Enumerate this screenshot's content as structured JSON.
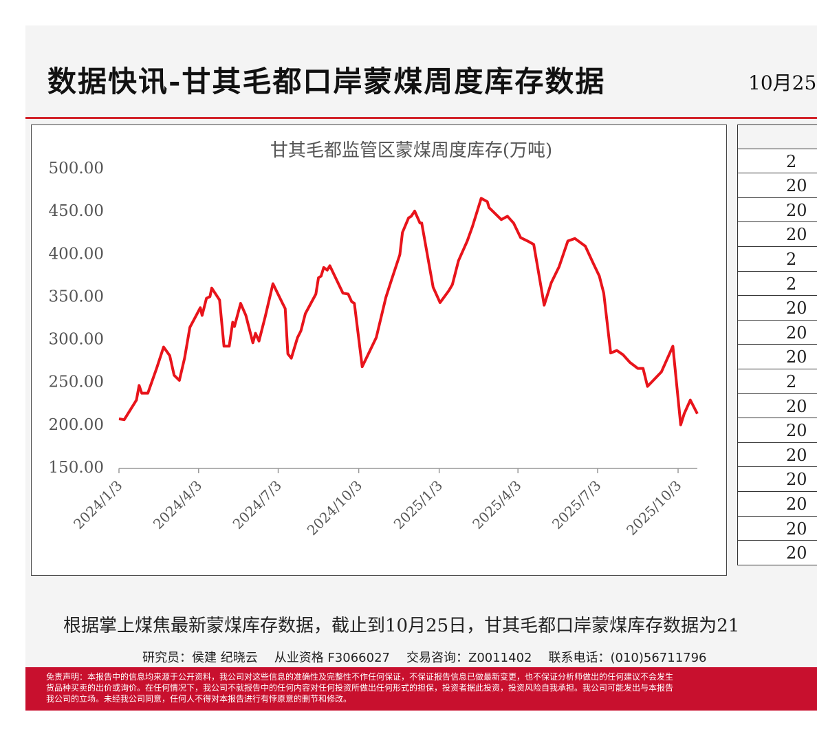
{
  "header": {
    "title": "数据快讯-甘其毛都口岸蒙煤周度库存数据",
    "date": "10月25"
  },
  "chart_data": {
    "type": "line",
    "title": "甘其毛都监管区蒙煤周度库存(万吨)",
    "color": "#e8141b",
    "x": [
      "2024/1/3",
      "2024/1/9",
      "2024/1/23",
      "2024/1/26",
      "2024/1/29",
      "2024/2/5",
      "2024/2/15",
      "2024/2/23",
      "2024/3/1",
      "2024/3/6",
      "2024/3/12",
      "2024/3/18",
      "2024/3/24",
      "2024/4/5",
      "2024/4/7",
      "2024/4/12",
      "2024/4/16",
      "2024/4/18",
      "2024/4/27",
      "2024/5/2",
      "2024/5/8",
      "2024/5/12",
      "2024/5/14",
      "2024/5/21",
      "2024/5/27",
      "2024/6/4",
      "2024/6/7",
      "2024/6/11",
      "2024/6/18",
      "2024/6/27",
      "2024/7/8",
      "2024/7/11",
      "2024/7/14",
      "2024/7/18",
      "2024/7/25",
      "2024/7/29",
      "2024/8/3",
      "2024/8/15",
      "2024/8/18",
      "2024/8/21",
      "2024/8/24",
      "2024/8/28",
      "2024/8/31",
      "2024/9/15",
      "2024/9/21",
      "2024/9/25",
      "2024/9/28",
      "2024/10/7",
      "2024/10/23",
      "2024/11/3",
      "2024/11/9",
      "2024/11/19",
      "2024/11/22",
      "2024/11/29",
      "2024/12/2",
      "2024/12/6",
      "2024/12/12",
      "2024/12/14",
      "2024/12/27",
      "2025/1/4",
      "2025/1/14",
      "2025/1/18",
      "2025/1/25",
      "2025/2/4",
      "2025/2/10",
      "2025/2/20",
      "2025/2/27",
      "2025/3/1",
      "2025/3/15",
      "2025/3/22",
      "2025/3/29",
      "2025/4/6",
      "2025/4/14",
      "2025/4/21",
      "2025/5/3",
      "2025/5/11",
      "2025/5/20",
      "2025/5/30",
      "2025/6/7",
      "2025/6/19",
      "2025/6/28",
      "2025/7/5",
      "2025/7/10",
      "2025/7/18",
      "2025/7/25",
      "2025/8/1",
      "2025/8/9",
      "2025/8/18",
      "2025/8/24",
      "2025/8/29",
      "2025/9/14",
      "2025/9/27",
      "2025/10/6",
      "2025/10/10",
      "2025/10/17",
      "2025/10/25"
    ],
    "values": [
      208,
      207,
      230,
      247,
      238,
      238,
      267,
      292,
      282,
      259,
      253,
      279,
      315,
      338,
      329,
      349,
      351,
      361,
      347,
      293,
      293,
      321,
      316,
      343,
      329,
      297,
      308,
      299,
      327,
      366,
      343,
      337,
      284,
      279,
      303,
      311,
      331,
      354,
      373,
      375,
      385,
      382,
      387,
      355,
      354,
      345,
      343,
      269,
      303,
      350,
      369,
      400,
      426,
      443,
      445,
      451,
      437,
      437,
      362,
      344,
      358,
      365,
      393,
      416,
      433,
      466,
      462,
      455,
      441,
      445,
      437,
      420,
      416,
      412,
      341,
      367,
      386,
      416,
      419,
      410,
      390,
      375,
      355,
      285,
      288,
      283,
      274,
      267,
      267,
      246,
      263,
      293,
      201,
      214,
      230,
      214
    ],
    "xlim": [
      "2024/1/3",
      "2025/10/25"
    ],
    "xticks": [
      "2024/1/3",
      "2024/4/3",
      "2024/7/3",
      "2024/10/3",
      "2025/1/3",
      "2025/4/3",
      "2025/7/3",
      "2025/10/3"
    ],
    "ylim": [
      150,
      500
    ],
    "yticks": [
      {
        "value": 150,
        "label": "150.00"
      },
      {
        "value": 200,
        "label": "200.00"
      },
      {
        "value": 250,
        "label": "250.00"
      },
      {
        "value": 300,
        "label": "300.00"
      },
      {
        "value": 350,
        "label": "350.00"
      },
      {
        "value": 400,
        "label": "400.00"
      },
      {
        "value": 450,
        "label": "450.00"
      },
      {
        "value": 500,
        "label": "500.00"
      }
    ]
  },
  "table": {
    "rows": [
      "2",
      "20",
      "20",
      "20",
      "2",
      "2",
      "20",
      "20",
      "20",
      "2",
      "20",
      "20",
      "20",
      "20",
      "20",
      "20",
      "20"
    ]
  },
  "summary": "根据掌上煤焦最新蒙煤库存数据，截止到10月25日，甘其毛都口岸蒙煤库存数据为21",
  "credits": {
    "researcher": "研究员：侯建 纪晓云",
    "license": "从业资格 F3066027",
    "consult": "交易咨询：Z0011402",
    "phone": "联系电话：(010)56711796"
  },
  "disclaimer": [
    "免责声明：本报告中的信息均来源于公开资料，我公司对这些信息的准确性及完整性不作任何保证，不保证报告信息已做最新变更，也不保证分析师做出的任何建议不会发生",
    "货品种买卖的出价或询价。在任何情况下，我公司不就报告中的任何内容对任何投资所做出任何形式的担保，投资者据此投资，投资风险自我承担。我公司可能发出与本报告",
    "我公司的立场。未经我公司同意，任何人不得对本报告进行有悖原意的删节和修改。"
  ]
}
